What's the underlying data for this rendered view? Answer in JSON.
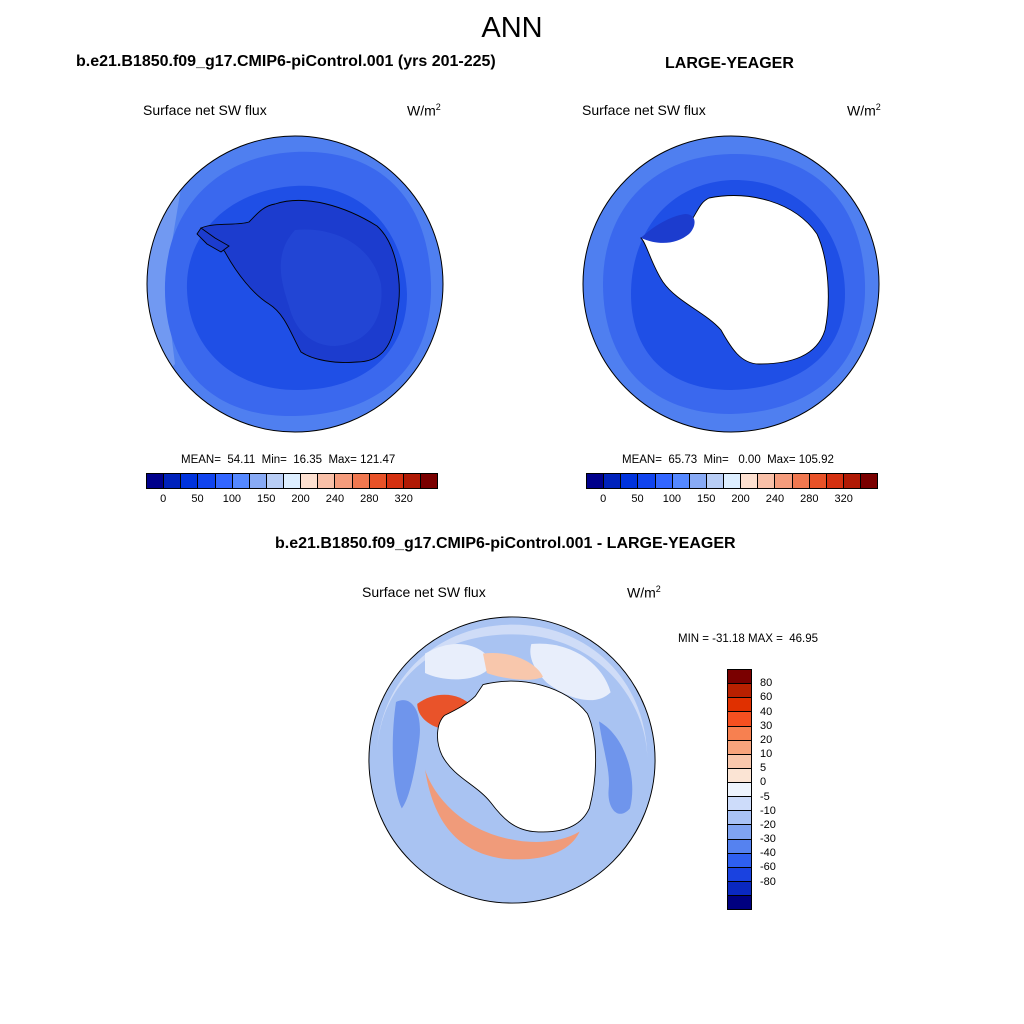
{
  "figure": {
    "title": "ANN"
  },
  "panels": {
    "top_left": {
      "case_title": "b.e21.B1850.f09_g17.CMIP6-piControl.001 (yrs 201-225)",
      "variable": "Surface net SW flux",
      "units_base": "W/m",
      "units_exp": "2",
      "stats": "MEAN=  54.11  Min=  16.35  Max= 121.47"
    },
    "top_right": {
      "case_title": "LARGE-YEAGER",
      "variable": "Surface net SW flux",
      "units_base": "W/m",
      "units_exp": "2",
      "stats": "MEAN=  65.73  Min=   0.00  Max= 105.92"
    },
    "bottom": {
      "case_title": "b.e21.B1850.f09_g17.CMIP6-piControl.001 - LARGE-YEAGER",
      "variable": "Surface net SW flux",
      "units_base": "W/m",
      "units_exp": "2",
      "stats": "MIN = -31.18 MAX =  46.95"
    }
  },
  "colorbars": {
    "absolute": {
      "colors": [
        "#00008b",
        "#0022bb",
        "#0033dd",
        "#1144ee",
        "#3366ff",
        "#5588ff",
        "#88aaf5",
        "#b8cdf5",
        "#ddeeff",
        "#fde0d0",
        "#f9c0a8",
        "#f59c7c",
        "#f07850",
        "#e85228",
        "#d43010",
        "#b01a05",
        "#7a0000"
      ],
      "tick_labels": [
        "0",
        "50",
        "100",
        "150",
        "200",
        "240",
        "280",
        "320"
      ]
    },
    "difference": {
      "colors": [
        "#7a0000",
        "#b82000",
        "#e03000",
        "#f55020",
        "#f78050",
        "#f8a47c",
        "#f9c7ac",
        "#fbe4d4",
        "#eef4fd",
        "#cddcfa",
        "#a8c2f6",
        "#7fa3f2",
        "#5582f0",
        "#2e5ff0",
        "#1a42e0",
        "#0a28c0",
        "#000080"
      ],
      "tick_labels": [
        "80",
        "60",
        "40",
        "30",
        "20",
        "10",
        "5",
        "0",
        "-5",
        "-10",
        "-20",
        "-30",
        "-40",
        "-60",
        "-80"
      ]
    }
  },
  "map_colors": {
    "base_light": "#4f7ff0",
    "base_mid": "#3a68ee",
    "base_dark": "#1f4fe6",
    "land_dark": "#1c3cce",
    "land_darker": "#2245d4",
    "edge_light": "#7199f2",
    "ice_mask": "#ffffff",
    "diff_base": "#a9c3f2",
    "diff_light": "#cfdcf7",
    "diff_pale": "#e8eefb",
    "diff_blue": "#6f95ec",
    "diff_orange": "#f09b7a",
    "diff_red": "#e9532a",
    "diff_peach": "#f8c7ac"
  }
}
